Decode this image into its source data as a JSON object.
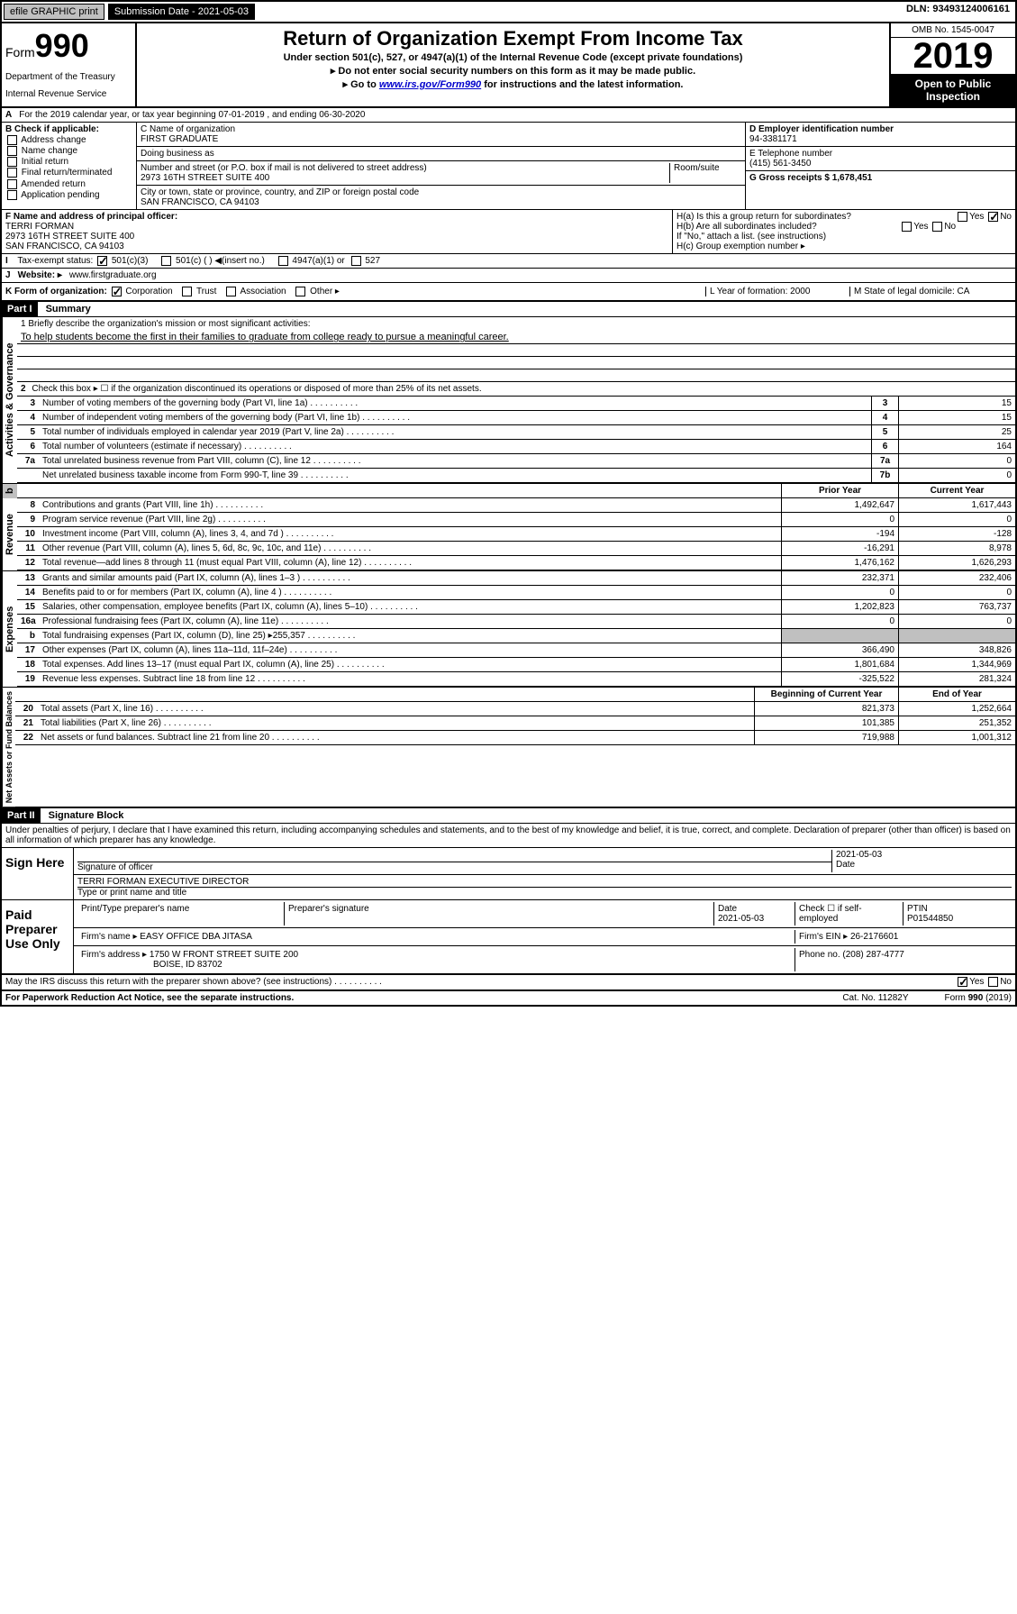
{
  "header": {
    "efile_label": "efile GRAPHIC print",
    "submission_label": "Submission Date - 2021-05-03",
    "dln": "DLN: 93493124006161"
  },
  "form_info": {
    "form_label": "Form",
    "form_number": "990",
    "dept1": "Department of the Treasury",
    "dept2": "Internal Revenue Service",
    "title": "Return of Organization Exempt From Income Tax",
    "subtitle1": "Under section 501(c), 527, or 4947(a)(1) of the Internal Revenue Code (except private foundations)",
    "subtitle2": "▸ Do not enter social security numbers on this form as it may be made public.",
    "subtitle3_pre": "▸ Go to ",
    "subtitle3_link": "www.irs.gov/Form990",
    "subtitle3_post": " for instructions and the latest information.",
    "omb": "OMB No. 1545-0047",
    "year": "2019",
    "open_public": "Open to Public Inspection"
  },
  "section_a": "For the 2019 calendar year, or tax year beginning 07-01-2019    , and ending 06-30-2020",
  "section_b": {
    "header": "B Check if applicable:",
    "opts": [
      "Address change",
      "Name change",
      "Initial return",
      "Final return/terminated",
      "Amended return",
      "Application pending"
    ]
  },
  "section_c": {
    "name_label": "C Name of organization",
    "name": "FIRST GRADUATE",
    "dba_label": "Doing business as",
    "dba": "",
    "addr_label": "Number and street (or P.O. box if mail is not delivered to street address)",
    "room_label": "Room/suite",
    "addr": "2973 16TH STREET SUITE 400",
    "city_label": "City or town, state or province, country, and ZIP or foreign postal code",
    "city": "SAN FRANCISCO, CA  94103"
  },
  "section_d": {
    "ein_label": "D Employer identification number",
    "ein": "94-3381171",
    "phone_label": "E Telephone number",
    "phone": "(415) 561-3450",
    "receipts_label": "G Gross receipts $ 1,678,451"
  },
  "section_f": {
    "label": "F  Name and address of principal officer:",
    "name": "TERRI FORMAN",
    "addr1": "2973 16TH STREET SUITE 400",
    "addr2": "SAN FRANCISCO, CA  94103"
  },
  "section_h": {
    "ha": "H(a)  Is this a group return for subordinates?",
    "hb": "H(b)  Are all subordinates included?",
    "hb_note": "If \"No,\" attach a list. (see instructions)",
    "hc": "H(c)  Group exemption number ▸"
  },
  "section_i": {
    "label": "Tax-exempt status:",
    "opts": [
      "501(c)(3)",
      "501(c) (  ) ◀(insert no.)",
      "4947(a)(1) or",
      "527"
    ]
  },
  "section_j": {
    "label": "Website: ▸",
    "url": "www.firstgraduate.org"
  },
  "section_k": {
    "label": "K Form of organization:",
    "opts": [
      "Corporation",
      "Trust",
      "Association",
      "Other ▸"
    ],
    "l_label": "L Year of formation: 2000",
    "m_label": "M State of legal domicile: CA"
  },
  "part1": {
    "header": "Part I",
    "title": "Summary",
    "line1_label": "1  Briefly describe the organization's mission or most significant activities:",
    "mission": "To help students become the first in their families to graduate from college ready to pursue a meaningful career.",
    "line2": "Check this box ▸ ☐  if the organization discontinued its operations or disposed of more than 25% of its net assets.",
    "governance_label": "Activities & Governance",
    "revenue_label": "Revenue",
    "expenses_label": "Expenses",
    "netassets_label": "Net Assets or Fund Balances",
    "prior_year": "Prior Year",
    "current_year": "Current Year",
    "begin_year": "Beginning of Current Year",
    "end_year": "End of Year",
    "lines_gov": [
      {
        "n": "3",
        "d": "Number of voting members of the governing body (Part VI, line 1a)",
        "b": "3",
        "v": "15"
      },
      {
        "n": "4",
        "d": "Number of independent voting members of the governing body (Part VI, line 1b)",
        "b": "4",
        "v": "15"
      },
      {
        "n": "5",
        "d": "Total number of individuals employed in calendar year 2019 (Part V, line 2a)",
        "b": "5",
        "v": "25"
      },
      {
        "n": "6",
        "d": "Total number of volunteers (estimate if necessary)",
        "b": "6",
        "v": "164"
      },
      {
        "n": "7a",
        "d": "Total unrelated business revenue from Part VIII, column (C), line 12",
        "b": "7a",
        "v": "0"
      },
      {
        "n": "",
        "d": "Net unrelated business taxable income from Form 990-T, line 39",
        "b": "7b",
        "v": "0"
      }
    ],
    "lines_rev": [
      {
        "n": "8",
        "d": "Contributions and grants (Part VIII, line 1h)",
        "p": "1,492,647",
        "c": "1,617,443"
      },
      {
        "n": "9",
        "d": "Program service revenue (Part VIII, line 2g)",
        "p": "0",
        "c": "0"
      },
      {
        "n": "10",
        "d": "Investment income (Part VIII, column (A), lines 3, 4, and 7d )",
        "p": "-194",
        "c": "-128"
      },
      {
        "n": "11",
        "d": "Other revenue (Part VIII, column (A), lines 5, 6d, 8c, 9c, 10c, and 11e)",
        "p": "-16,291",
        "c": "8,978"
      },
      {
        "n": "12",
        "d": "Total revenue—add lines 8 through 11 (must equal Part VIII, column (A), line 12)",
        "p": "1,476,162",
        "c": "1,626,293"
      }
    ],
    "lines_exp": [
      {
        "n": "13",
        "d": "Grants and similar amounts paid (Part IX, column (A), lines 1–3 )",
        "p": "232,371",
        "c": "232,406"
      },
      {
        "n": "14",
        "d": "Benefits paid to or for members (Part IX, column (A), line 4 )",
        "p": "0",
        "c": "0"
      },
      {
        "n": "15",
        "d": "Salaries, other compensation, employee benefits (Part IX, column (A), lines 5–10)",
        "p": "1,202,823",
        "c": "763,737"
      },
      {
        "n": "16a",
        "d": "Professional fundraising fees (Part IX, column (A), line 11e)",
        "p": "0",
        "c": "0"
      },
      {
        "n": "b",
        "d": "Total fundraising expenses (Part IX, column (D), line 25) ▸255,357",
        "p": "",
        "c": "",
        "shaded": true
      },
      {
        "n": "17",
        "d": "Other expenses (Part IX, column (A), lines 11a–11d, 11f–24e)",
        "p": "366,490",
        "c": "348,826"
      },
      {
        "n": "18",
        "d": "Total expenses. Add lines 13–17 (must equal Part IX, column (A), line 25)",
        "p": "1,801,684",
        "c": "1,344,969"
      },
      {
        "n": "19",
        "d": "Revenue less expenses. Subtract line 18 from line 12",
        "p": "-325,522",
        "c": "281,324"
      }
    ],
    "lines_net": [
      {
        "n": "20",
        "d": "Total assets (Part X, line 16)",
        "p": "821,373",
        "c": "1,252,664"
      },
      {
        "n": "21",
        "d": "Total liabilities (Part X, line 26)",
        "p": "101,385",
        "c": "251,352"
      },
      {
        "n": "22",
        "d": "Net assets or fund balances. Subtract line 21 from line 20",
        "p": "719,988",
        "c": "1,001,312"
      }
    ]
  },
  "part2": {
    "header": "Part II",
    "title": "Signature Block",
    "perjury": "Under penalties of perjury, I declare that I have examined this return, including accompanying schedules and statements, and to the best of my knowledge and belief, it is true, correct, and complete. Declaration of preparer (other than officer) is based on all information of which preparer has any knowledge.",
    "sign_here": "Sign Here",
    "sig_officer": "Signature of officer",
    "sig_date": "2021-05-03",
    "date_label": "Date",
    "officer_name": "TERRI FORMAN  EXECUTIVE DIRECTOR",
    "type_name": "Type or print name and title",
    "paid_prep": "Paid Preparer Use Only",
    "prep_name_label": "Print/Type preparer's name",
    "prep_sig_label": "Preparer's signature",
    "prep_date": "2021-05-03",
    "check_self": "Check ☐ if self-employed",
    "ptin_label": "PTIN",
    "ptin": "P01544850",
    "firm_name_label": "Firm's name   ▸",
    "firm_name": "EASY OFFICE DBA JITASA",
    "firm_ein_label": "Firm's EIN ▸",
    "firm_ein": "26-2176601",
    "firm_addr_label": "Firm's address ▸",
    "firm_addr1": "1750 W FRONT STREET SUITE 200",
    "firm_addr2": "BOISE, ID  83702",
    "firm_phone_label": "Phone no.",
    "firm_phone": "(208) 287-4777",
    "discuss": "May the IRS discuss this return with the preparer shown above? (see instructions)"
  },
  "footer": {
    "paperwork": "For Paperwork Reduction Act Notice, see the separate instructions.",
    "cat": "Cat. No. 11282Y",
    "form": "Form 990 (2019)"
  }
}
